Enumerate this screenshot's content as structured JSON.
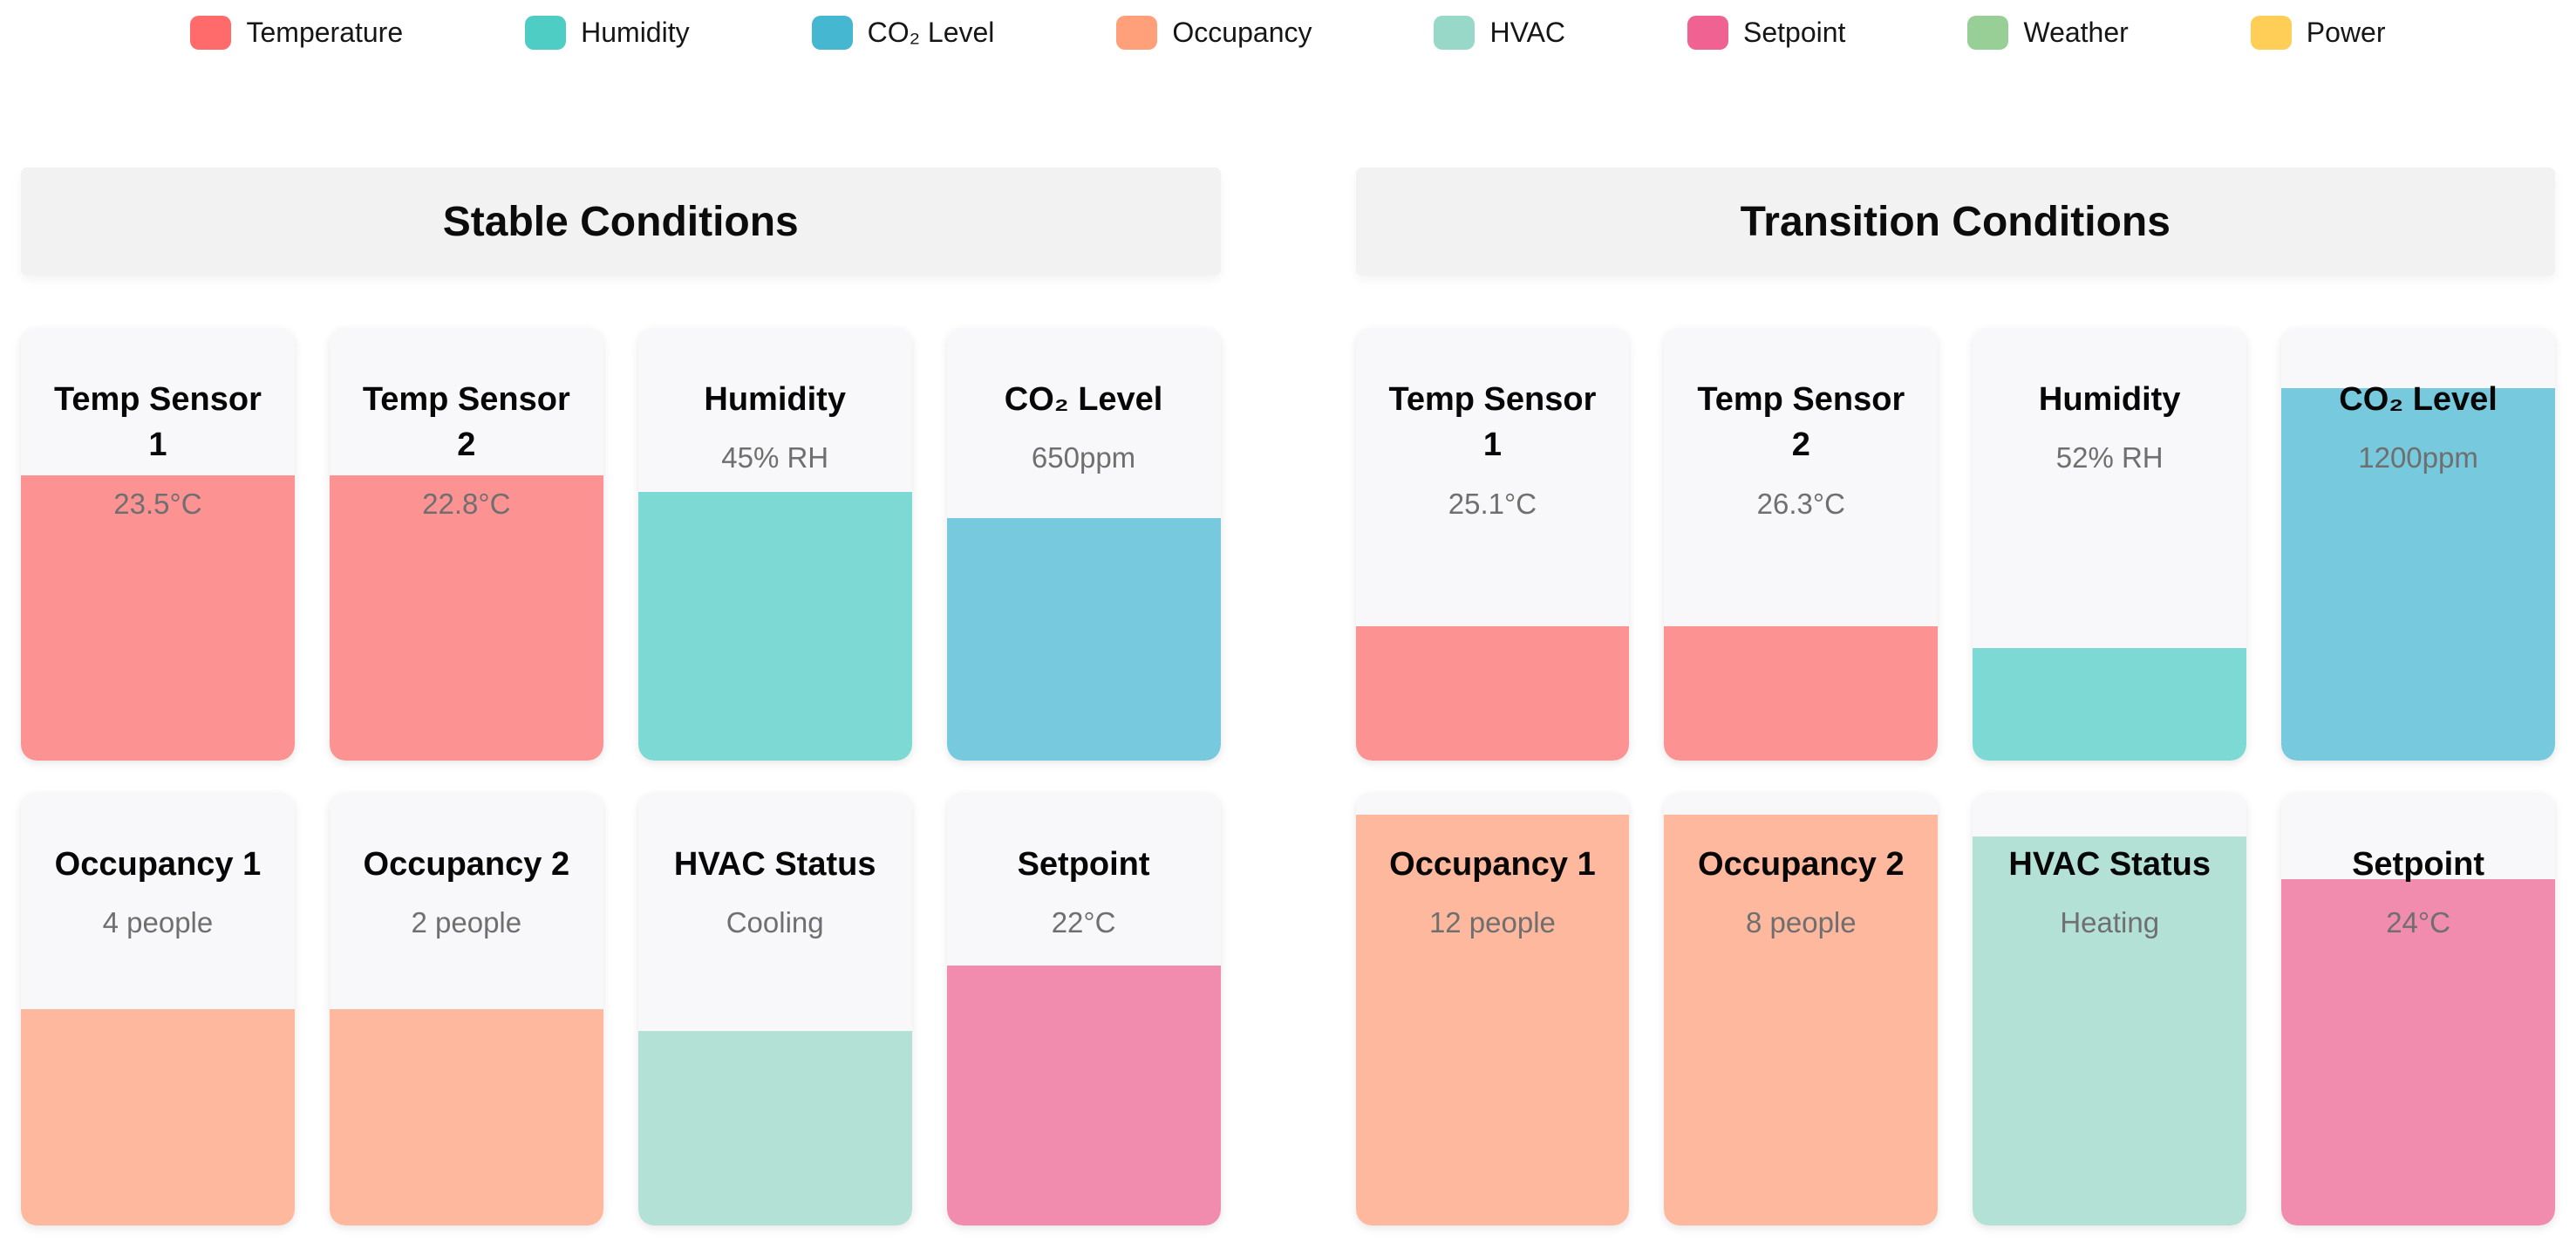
{
  "legend": {
    "items": [
      {
        "label": "Temperature",
        "color": "#FF6B6B"
      },
      {
        "label": "Humidity",
        "color": "#4ECDC4"
      },
      {
        "label": "CO₂ Level",
        "color": "#45B7D1"
      },
      {
        "label": "Occupancy",
        "color": "#FFA07A"
      },
      {
        "label": "HVAC",
        "color": "#98D8C8"
      },
      {
        "label": "Setpoint",
        "color": "#F06292"
      },
      {
        "label": "Weather",
        "color": "#97CF97"
      },
      {
        "label": "Power",
        "color": "#FFCE56"
      }
    ]
  },
  "sections": [
    {
      "title": "Stable Conditions",
      "cards": [
        {
          "title": "Temp Sensor\n1",
          "value": "23.5°C",
          "color": "#FF6B6B",
          "fill_percent": 66
        },
        {
          "title": "Temp Sensor\n2",
          "value": "22.8°C",
          "color": "#FF6B6B",
          "fill_percent": 66
        },
        {
          "title": "Humidity",
          "value": "45% RH",
          "color": "#4ECDC4",
          "fill_percent": 62
        },
        {
          "title": "CO₂ Level",
          "value": "650ppm",
          "color": "#45B7D1",
          "fill_percent": 56
        },
        {
          "title": "Occupancy 1",
          "value": "4 people",
          "color": "#FFA07A",
          "fill_percent": 50
        },
        {
          "title": "Occupancy 2",
          "value": "2 people",
          "color": "#FFA07A",
          "fill_percent": 50
        },
        {
          "title": "HVAC Status",
          "value": "Cooling",
          "color": "#98D8C8",
          "fill_percent": 45
        },
        {
          "title": "Setpoint",
          "value": "22°C",
          "color": "#F06292",
          "fill_percent": 60
        }
      ]
    },
    {
      "title": "Transition Conditions",
      "cards": [
        {
          "title": "Temp Sensor\n1",
          "value": "25.1°C",
          "color": "#FF6B6B",
          "fill_percent": 31
        },
        {
          "title": "Temp Sensor\n2",
          "value": "26.3°C",
          "color": "#FF6B6B",
          "fill_percent": 31
        },
        {
          "title": "Humidity",
          "value": "52% RH",
          "color": "#4ECDC4",
          "fill_percent": 26
        },
        {
          "title": "CO₂ Level",
          "value": "1200ppm",
          "color": "#45B7D1",
          "fill_percent": 86
        },
        {
          "title": "Occupancy 1",
          "value": "12 people",
          "color": "#FFA07A",
          "fill_percent": 95
        },
        {
          "title": "Occupancy 2",
          "value": "8 people",
          "color": "#FFA07A",
          "fill_percent": 95
        },
        {
          "title": "HVAC Status",
          "value": "Heating",
          "color": "#98D8C8",
          "fill_percent": 90
        },
        {
          "title": "Setpoint",
          "value": "24°C",
          "color": "#F06292",
          "fill_percent": 80
        }
      ]
    }
  ],
  "chart_data": {
    "type": "table",
    "title": "Building sensor conditions dashboard",
    "legend_entries": [
      "Temperature",
      "Humidity",
      "CO₂ Level",
      "Occupancy",
      "HVAC",
      "Setpoint",
      "Weather",
      "Power"
    ],
    "legend_position": "top-center",
    "groups": [
      {
        "name": "Stable Conditions",
        "readings": [
          {
            "sensor": "Temp Sensor 1",
            "value": "23.5°C",
            "gauge_fill_percent": 66
          },
          {
            "sensor": "Temp Sensor 2",
            "value": "22.8°C",
            "gauge_fill_percent": 66
          },
          {
            "sensor": "Humidity",
            "value": "45% RH",
            "gauge_fill_percent": 62
          },
          {
            "sensor": "CO₂ Level",
            "value": "650ppm",
            "gauge_fill_percent": 56
          },
          {
            "sensor": "Occupancy 1",
            "value": "4 people",
            "gauge_fill_percent": 50
          },
          {
            "sensor": "Occupancy 2",
            "value": "2 people",
            "gauge_fill_percent": 50
          },
          {
            "sensor": "HVAC Status",
            "value": "Cooling",
            "gauge_fill_percent": 45
          },
          {
            "sensor": "Setpoint",
            "value": "22°C",
            "gauge_fill_percent": 60
          }
        ]
      },
      {
        "name": "Transition Conditions",
        "readings": [
          {
            "sensor": "Temp Sensor 1",
            "value": "25.1°C",
            "gauge_fill_percent": 31
          },
          {
            "sensor": "Temp Sensor 2",
            "value": "26.3°C",
            "gauge_fill_percent": 31
          },
          {
            "sensor": "Humidity",
            "value": "52% RH",
            "gauge_fill_percent": 26
          },
          {
            "sensor": "CO₂ Level",
            "value": "1200ppm",
            "gauge_fill_percent": 86
          },
          {
            "sensor": "Occupancy 1",
            "value": "12 people",
            "gauge_fill_percent": 95
          },
          {
            "sensor": "Occupancy 2",
            "value": "8 people",
            "gauge_fill_percent": 95
          },
          {
            "sensor": "HVAC Status",
            "value": "Heating",
            "gauge_fill_percent": 90
          },
          {
            "sensor": "Setpoint",
            "value": "24°C",
            "gauge_fill_percent": 80
          }
        ]
      }
    ]
  }
}
